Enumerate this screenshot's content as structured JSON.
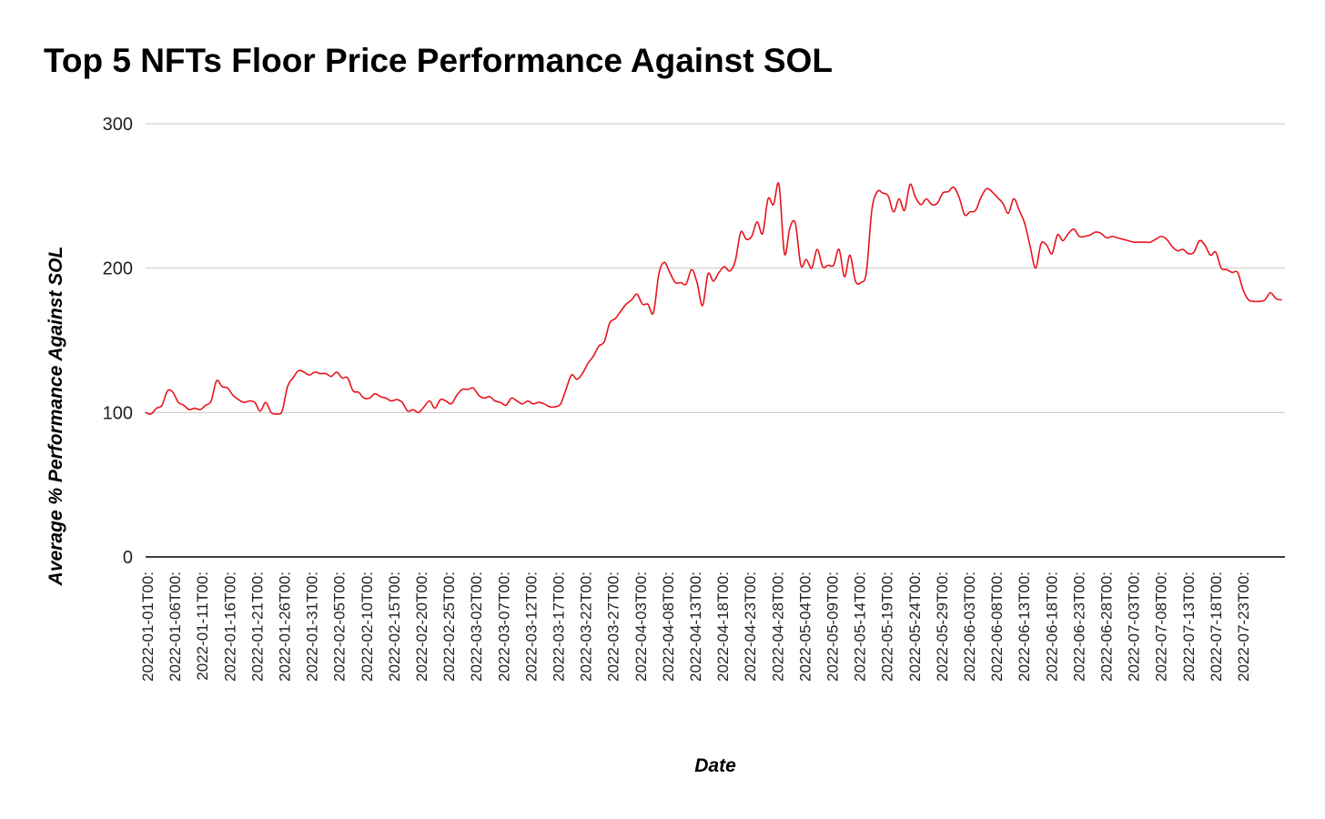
{
  "chart_data": {
    "type": "line",
    "title": "Top 5 NFTs Floor Price Performance Against SOL",
    "xlabel": "Date",
    "ylabel": "Average % Performance Against SOL",
    "ylim": [
      0,
      300
    ],
    "y_ticks": [
      "0",
      "100",
      "200",
      "300"
    ],
    "x_tick_labels": [
      "2022-01-01T00:",
      "2022-01-06T00:",
      "2022-01-11T00:",
      "2022-01-16T00:",
      "2022-01-21T00:",
      "2022-01-26T00:",
      "2022-01-31T00:",
      "2022-02-05T00:",
      "2022-02-10T00:",
      "2022-02-15T00:",
      "2022-02-20T00:",
      "2022-02-25T00:",
      "2022-03-02T00:",
      "2022-03-07T00:",
      "2022-03-12T00:",
      "2022-03-17T00:",
      "2022-03-22T00:",
      "2022-03-27T00:",
      "2022-04-03T00:",
      "2022-04-08T00:",
      "2022-04-13T00:",
      "2022-04-18T00:",
      "2022-04-23T00:",
      "2022-04-28T00:",
      "2022-05-04T00:",
      "2022-05-09T00:",
      "2022-05-14T00:",
      "2022-05-19T00:",
      "2022-05-24T00:",
      "2022-05-29T00:",
      "2022-06-03T00:",
      "2022-06-08T00:",
      "2022-06-13T00:",
      "2022-06-18T00:",
      "2022-06-23T00:",
      "2022-06-28T00:",
      "2022-07-03T00:",
      "2022-07-08T00:",
      "2022-07-13T00:",
      "2022-07-18T00:",
      "2022-07-23T00:"
    ],
    "grid": true,
    "legend": "none",
    "line_color": "#e8141c",
    "series": [
      {
        "values": [
          100,
          99,
          103,
          105,
          115,
          114,
          107,
          105,
          102,
          103,
          102,
          105,
          108,
          122,
          118,
          117,
          112,
          109,
          107,
          108,
          107,
          101,
          107,
          100,
          99,
          101,
          118,
          124,
          129,
          128,
          126,
          128,
          127,
          127,
          125,
          128,
          124,
          124,
          115,
          114,
          110,
          110,
          113,
          111,
          110,
          108,
          109,
          107,
          101,
          102,
          100,
          104,
          108,
          103,
          109,
          108,
          106,
          112,
          116,
          116,
          117,
          112,
          110,
          111,
          108,
          107,
          105,
          110,
          108,
          106,
          108,
          106,
          107,
          106,
          104,
          104,
          106,
          116,
          126,
          123,
          127,
          134,
          139,
          146,
          149,
          162,
          165,
          170,
          175,
          178,
          182,
          175,
          175,
          169,
          196,
          204,
          197,
          190,
          190,
          189,
          199,
          190,
          174,
          196,
          191,
          197,
          201,
          198,
          205,
          225,
          220,
          222,
          232,
          224,
          248,
          244,
          258,
          210,
          228,
          231,
          202,
          206,
          200,
          213,
          201,
          202,
          202,
          213,
          194,
          209,
          191,
          190,
          197,
          240,
          253,
          252,
          250,
          239,
          248,
          240,
          258,
          249,
          244,
          248,
          244,
          245,
          252,
          253,
          256,
          249,
          237,
          239,
          240,
          249,
          255,
          253,
          249,
          245,
          238,
          248,
          240,
          231,
          215,
          200,
          217,
          216,
          210,
          223,
          219,
          224,
          227,
          222,
          222,
          223,
          225,
          224,
          221,
          222,
          221,
          220,
          219,
          218,
          218,
          218,
          218,
          220,
          222,
          220,
          215,
          212,
          213,
          210,
          211,
          219,
          216,
          209,
          211,
          200,
          199,
          197,
          197,
          185,
          178,
          177,
          177,
          178,
          183,
          179,
          178
        ]
      }
    ]
  }
}
